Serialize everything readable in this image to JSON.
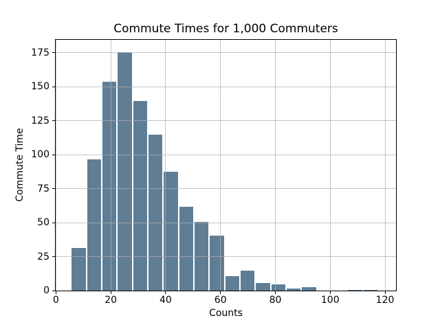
{
  "figure": {
    "kind": "histogram-figure"
  },
  "chart_data": {
    "type": "bar",
    "title": "Commute Times for 1,000 Commuters",
    "xlabel": "Counts",
    "ylabel": "Commute Time",
    "bin_start": 5.5,
    "bin_width": 5.6,
    "values": [
      32,
      97,
      154,
      176,
      140,
      115,
      88,
      62,
      51,
      41,
      11,
      15,
      6,
      5,
      2,
      3,
      0,
      0,
      1,
      1
    ],
    "total_count": 1000,
    "x_ticks": [
      0,
      20,
      40,
      60,
      80,
      100,
      120
    ],
    "y_ticks": [
      0,
      25,
      50,
      75,
      100,
      125,
      150,
      175
    ],
    "xlim": [
      -0.1,
      124.0
    ],
    "ylim": [
      0,
      184.4
    ],
    "grid": true,
    "legend": "none",
    "bar_color": "#5f7d95",
    "bar_edge_color": "#ffffff",
    "grid_color": "#b0b0b0",
    "spine_color": "#000000",
    "background_color": "#ffffff"
  }
}
